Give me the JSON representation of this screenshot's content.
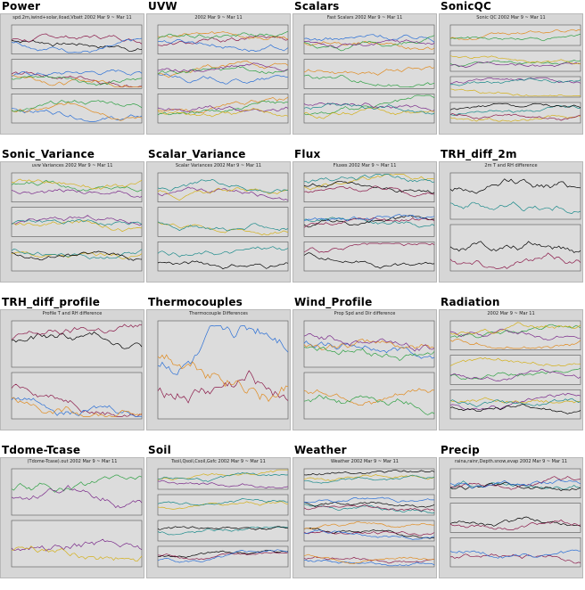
{
  "thumbnails": [
    {
      "title": "Power",
      "subtitle": "spd.2m,iwind+solar,iload,Vbatt 2002 Mar 9 ~ Mar 11",
      "panels": 3
    },
    {
      "title": "UVW",
      "subtitle": "2002 Mar 9 ~ Mar 11",
      "panels": 3
    },
    {
      "title": "Scalars",
      "subtitle": "Fast Scalars 2002 Mar 9 ~ Mar 11",
      "panels": 3
    },
    {
      "title": "SonicQC",
      "subtitle": "Sonic QC 2002 Mar 9 ~ Mar 11",
      "panels": 4
    },
    {
      "title": "Sonic_Variance",
      "subtitle": "uvw Variances 2002 Mar 9 ~ Mar 11",
      "panels": 3
    },
    {
      "title": "Scalar_Variance",
      "subtitle": "Scalar Variances 2002 Mar 9 ~ Mar 11",
      "panels": 3
    },
    {
      "title": "Flux",
      "subtitle": "Fluxes 2002 Mar 9 ~ Mar 11",
      "panels": 3
    },
    {
      "title": "TRH_diff_2m",
      "subtitle": "2m T and RH difference",
      "panels": 2
    },
    {
      "title": "TRH_diff_profile",
      "subtitle": "Profile T and RH difference",
      "panels": 2
    },
    {
      "title": "Thermocouples",
      "subtitle": "Thermocouple Differences",
      "panels": 1
    },
    {
      "title": "Wind_Profile",
      "subtitle": "Prop Spd and Dir difference",
      "panels": 2
    },
    {
      "title": "Radiation",
      "subtitle": "2002 Mar 9 ~ Mar 11",
      "panels": 3
    },
    {
      "title": "Tdome-Tcase",
      "subtitle": "(Tdome-Tcase).out 2002 Mar 9 ~ Mar 11",
      "panels": 2
    },
    {
      "title": "Soil",
      "subtitle": "Tsoil,Qsoil,Csoil,Gsfc 2002 Mar 9 ~ Mar 11",
      "panels": 4
    },
    {
      "title": "Weather",
      "subtitle": "Weather 2002 Mar 9 ~ Mar 11",
      "panels": 4
    },
    {
      "title": "Precip",
      "subtitle": "raina,rainr,Depth.snow,evap 2002 Mar 9 ~ Mar 11",
      "panels": 3
    }
  ],
  "colors": {
    "plot_bg": "#d6d6d6",
    "panel_bg": "#dcdcdc",
    "series": [
      "#000000",
      "#8b1a4a",
      "#2a6fd6",
      "#e08a1e",
      "#2ea043",
      "#7a2a8a",
      "#d4b01a",
      "#1a8a8a"
    ]
  }
}
